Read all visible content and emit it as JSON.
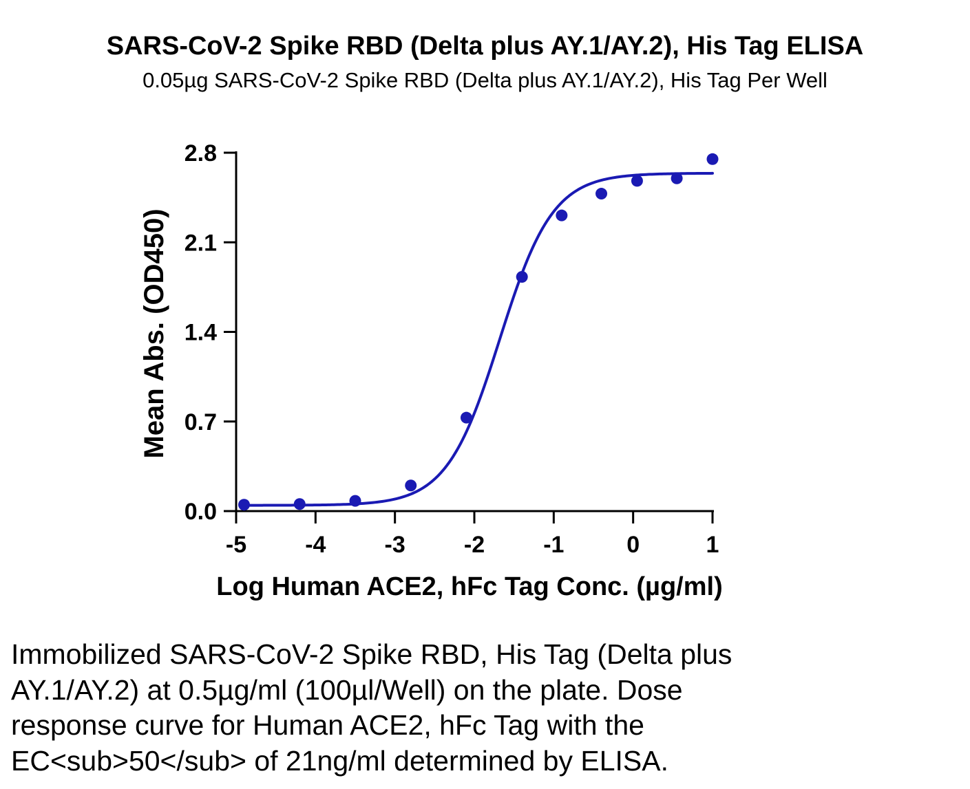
{
  "chart_data": {
    "type": "scatter",
    "title": "SARS-CoV-2 Spike RBD (Delta plus AY.1/AY.2), His Tag ELISA",
    "subtitle": "0.05µg SARS-CoV-2 Spike RBD (Delta plus AY.1/AY.2), His Tag Per Well",
    "xlabel": "Log Human ACE2, hFc Tag Conc. (µg/ml)",
    "ylabel": "Mean Abs. (OD450)",
    "xlim": [
      -5,
      1
    ],
    "ylim": [
      0.0,
      2.8
    ],
    "x_ticks": [
      -5,
      -4,
      -3,
      -2,
      -1,
      0,
      1
    ],
    "x_tick_labels": [
      "-5",
      "-4",
      "-3",
      "-2",
      "-1",
      "0",
      "1"
    ],
    "y_ticks": [
      0.0,
      0.7,
      1.4,
      2.1,
      2.8
    ],
    "y_tick_labels": [
      "0.0",
      "0.7",
      "1.4",
      "2.1",
      "2.8"
    ],
    "grid": false,
    "color": "#1a1ab3",
    "series": [
      {
        "x": [
          -4.9,
          -4.2,
          -3.5,
          -2.8,
          -2.1,
          -1.4,
          -0.9,
          -0.4,
          0.05,
          0.55,
          1.0
        ],
        "y": [
          0.05,
          0.055,
          0.08,
          0.2,
          0.73,
          1.83,
          2.31,
          2.48,
          2.58,
          2.6,
          2.75
        ]
      }
    ],
    "fit_curve": {
      "model": "4PL",
      "bottom": 0.045,
      "top": 2.64,
      "log_ec50": -1.68,
      "hill_slope": 1.3
    }
  },
  "caption": {
    "lines": [
      "Immobilized SARS-CoV-2 Spike RBD, His Tag (Delta plus",
      "AY.1/AY.2) at 0.5µg/ml (100µl/Well) on the plate. Dose",
      "response curve for Human ACE2, hFc Tag with the",
      "EC<sub>50</sub> of 21ng/ml determined by ELISA."
    ]
  }
}
